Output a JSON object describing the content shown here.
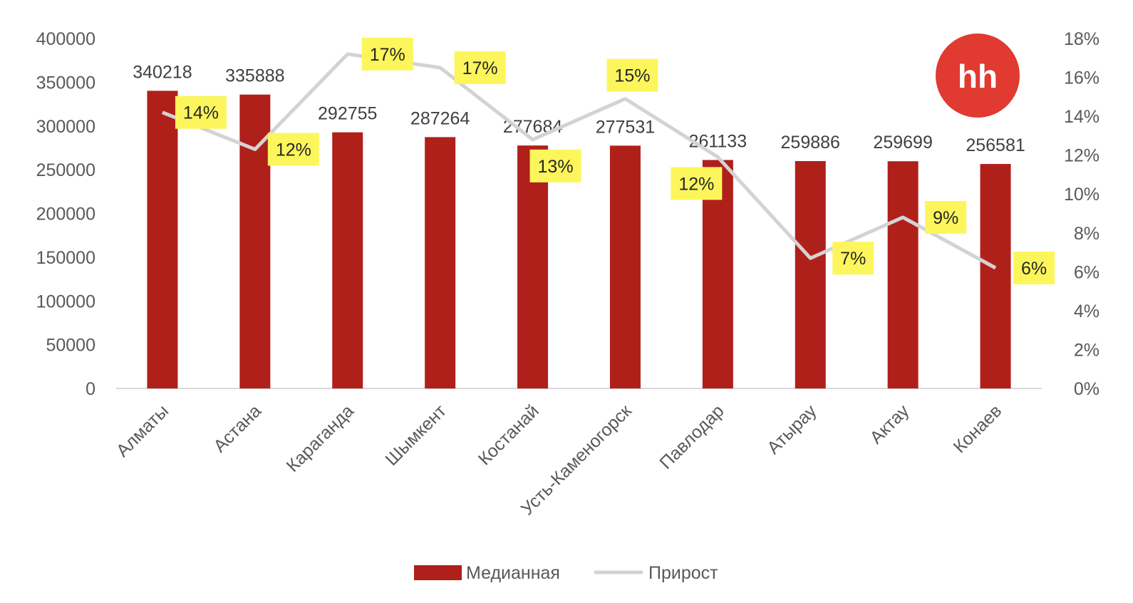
{
  "chart_data": {
    "type": "bar",
    "categories": [
      "Алматы",
      "Астана",
      "Караганда",
      "Шымкент",
      "Костанай",
      "Усть-Каменогорск",
      "Павлодар",
      "Атырау",
      "Актау",
      "Конаев"
    ],
    "series": [
      {
        "name": "Медианная",
        "type": "bar",
        "axis": "left",
        "values": [
          340218,
          335888,
          292755,
          287264,
          277684,
          277531,
          261133,
          259886,
          259699,
          256581
        ],
        "labels": [
          "340218",
          "335888",
          "292755",
          "287264",
          "277684",
          "277531",
          "261133",
          "259886",
          "259699",
          "256581"
        ]
      },
      {
        "name": "Прирост",
        "type": "line",
        "axis": "right",
        "values": [
          0.142,
          0.123,
          0.172,
          0.165,
          0.128,
          0.149,
          0.119,
          0.067,
          0.088,
          0.062
        ],
        "labels": [
          "14%",
          "12%",
          "17%",
          "17%",
          "13%",
          "15%",
          "12%",
          "7%",
          "9%",
          "6%"
        ]
      }
    ],
    "y_left": {
      "min": 0,
      "max": 400000,
      "ticks": [
        "0",
        "50000",
        "100000",
        "150000",
        "200000",
        "250000",
        "300000",
        "350000",
        "400000"
      ]
    },
    "y_right": {
      "min": 0,
      "max": 0.18,
      "ticks": [
        "0%",
        "2%",
        "4%",
        "6%",
        "8%",
        "10%",
        "12%",
        "14%",
        "16%",
        "18%"
      ]
    },
    "grid": false,
    "legend_position": "bottom",
    "colors": {
      "bar": "#b0201a",
      "line": "#d3d3d3",
      "label_bg": "#fcf65c",
      "logo": "#e03a31"
    },
    "logo_text": "hh"
  }
}
